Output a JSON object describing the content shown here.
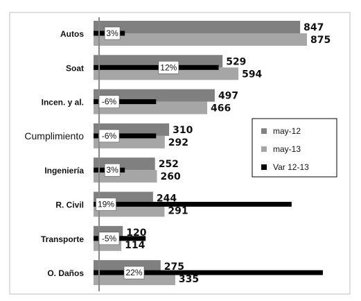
{
  "chart_data": {
    "type": "bar",
    "orientation": "horizontal",
    "categories": [
      "Autos",
      "Soat",
      "Incen. y al.",
      "Cumplimiento",
      "Ingeniería",
      "R. Civil",
      "Transporte",
      "O. Daños"
    ],
    "series": [
      {
        "name": "may-12",
        "values": [
          847,
          529,
          497,
          310,
          252,
          244,
          120,
          275
        ],
        "color": "#808080"
      },
      {
        "name": "may-13",
        "values": [
          875,
          594,
          466,
          292,
          260,
          291,
          114,
          335
        ],
        "color": "#a6a6a6"
      },
      {
        "name": "Var 12-13",
        "values": [
          3,
          12,
          -6,
          -6,
          3,
          19,
          -5,
          22
        ],
        "labels": [
          "3%",
          "12%",
          "-6%",
          "-6%",
          "3%",
          "19%",
          "-5%",
          "22%"
        ],
        "color": "#000000"
      }
    ],
    "title": "",
    "xlabel": "",
    "ylabel": "",
    "legend_position": "right",
    "grid": false
  }
}
